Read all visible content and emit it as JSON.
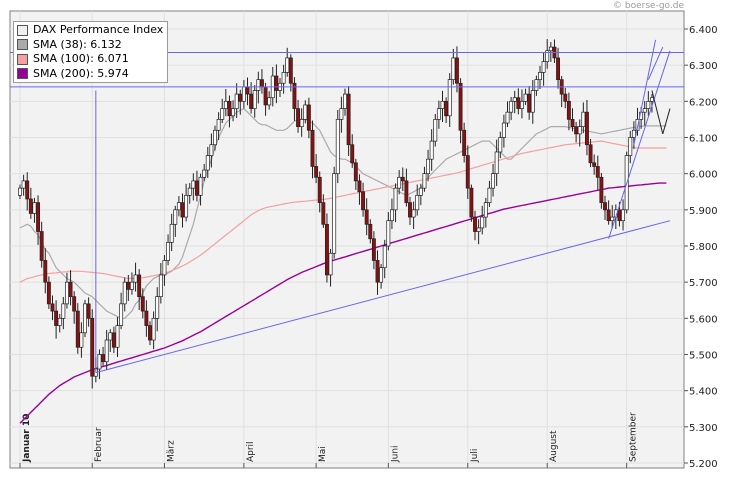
{
  "watermark": "© boerse-go.de",
  "legend": {
    "items": [
      {
        "label": "DAX Performance Index",
        "color": "#f0f0f0"
      },
      {
        "label": "SMA (38): 6.132",
        "color": "#aaaaaa"
      },
      {
        "label": "SMA (100): 6.071",
        "color": "#f4a0a0"
      },
      {
        "label": "SMA (200): 5.974",
        "color": "#990099"
      }
    ]
  },
  "colors": {
    "background": "#f2f2f2",
    "grid": "#e0e0e0",
    "candle_up": "#ffffff",
    "candle_down": "#8b1010",
    "sma38": "#aaaaaa",
    "sma100": "#f4a0a0",
    "sma200": "#990099",
    "trendline": "#6666ee"
  },
  "chart_data": {
    "type": "candlestick",
    "title": "",
    "ylim": [
      5200,
      6420
    ],
    "y_ticks": [
      "6.400",
      "6.300",
      "6.200",
      "6.100",
      "6.000",
      "5.900",
      "5.800",
      "5.700",
      "5.600",
      "5.500",
      "5.400",
      "5.300",
      "5.200"
    ],
    "y_tick_values": [
      6400,
      6300,
      6200,
      6100,
      6000,
      5900,
      5800,
      5700,
      5600,
      5500,
      5400,
      5300,
      5200
    ],
    "month_labels": [
      {
        "label": "Januar 10",
        "day": 0,
        "bold": true
      },
      {
        "label": "Februar",
        "day": 20
      },
      {
        "label": "März",
        "day": 40
      },
      {
        "label": "April",
        "day": 62
      },
      {
        "label": "Mai",
        "day": 82
      },
      {
        "label": "Juni",
        "day": 102
      },
      {
        "label": "Juli",
        "day": 124
      },
      {
        "label": "August",
        "day": 146
      },
      {
        "label": "September",
        "day": 168
      }
    ],
    "total_days": 180,
    "closes": [
      5960,
      5980,
      5930,
      5890,
      5920,
      5840,
      5760,
      5700,
      5640,
      5620,
      5580,
      5600,
      5640,
      5700,
      5660,
      5620,
      5520,
      5560,
      5640,
      5600,
      5440,
      5460,
      5500,
      5480,
      5540,
      5560,
      5520,
      5580,
      5640,
      5700,
      5680,
      5700,
      5720,
      5660,
      5620,
      5580,
      5540,
      5600,
      5660,
      5720,
      5760,
      5810,
      5860,
      5900,
      5920,
      5880,
      5940,
      5960,
      5980,
      5940,
      5990,
      6010,
      6050,
      6080,
      6120,
      6150,
      6180,
      6200,
      6160,
      6180,
      6220,
      6200,
      6240,
      6220,
      6180,
      6230,
      6260,
      6240,
      6190,
      6210,
      6270,
      6230,
      6250,
      6280,
      6320,
      6250,
      6180,
      6130,
      6150,
      6190,
      6120,
      6020,
      5990,
      5920,
      5860,
      5720,
      5780,
      6000,
      6150,
      6180,
      6220,
      6080,
      6030,
      5980,
      5950,
      5900,
      5860,
      5820,
      5760,
      5700,
      5740,
      5800,
      5870,
      5900,
      5960,
      5990,
      5980,
      5920,
      5880,
      5900,
      5940,
      5960,
      6000,
      6040,
      6090,
      6150,
      6180,
      6200,
      6160,
      6260,
      6320,
      6250,
      6120,
      6050,
      5960,
      5880,
      5840,
      5850,
      5880,
      5920,
      5960,
      6000,
      6060,
      6100,
      6140,
      6170,
      6200,
      6210,
      6180,
      6200,
      6220,
      6170,
      6230,
      6260,
      6280,
      6310,
      6340,
      6350,
      6320,
      6260,
      6220,
      6200,
      6150,
      6130,
      6110,
      6130,
      6170,
      6080,
      6030,
      6020,
      5990,
      5920,
      5900,
      5870,
      5880,
      5900,
      5870,
      5900,
      6050,
      6100,
      6120,
      6150,
      6170,
      6180,
      6200,
      6210
    ],
    "sma38": [
      5850,
      5855,
      5860,
      5855,
      5840,
      5830,
      5810,
      5790,
      5780,
      5760,
      5740,
      5730,
      5720,
      5710,
      5705,
      5700,
      5690,
      5680,
      5670,
      5665,
      5660,
      5650,
      5640,
      5630,
      5620,
      5615,
      5610,
      5605,
      5600,
      5600,
      5610,
      5620,
      5640,
      5650,
      5670,
      5690,
      5700,
      5710,
      5715,
      5720,
      5720,
      5725,
      5730,
      5740,
      5750,
      5770,
      5800,
      5830,
      5860,
      5900,
      5940,
      5980,
      6010,
      6040,
      6070,
      6100,
      6120,
      6140,
      6150,
      6160,
      6170,
      6175,
      6180,
      6170,
      6160,
      6150,
      6140,
      6135,
      6135,
      6130,
      6125,
      6120,
      6120,
      6120,
      6125,
      6135,
      6145,
      6150,
      6150,
      6150,
      6145,
      6140,
      6130,
      6120,
      6100,
      6080,
      6060,
      6050,
      6045,
      6040,
      6040,
      6035,
      6030,
      6020,
      6010,
      6000,
      5995,
      5990,
      5985,
      5980,
      5975,
      5970,
      5965,
      5960,
      5955,
      5950,
      5945,
      5940,
      5945,
      5950,
      5955,
      5960,
      5975,
      5990,
      6000,
      6010,
      6020,
      6030,
      6040,
      6045,
      6050,
      6055,
      6060,
      6065,
      6070,
      6075,
      6080,
      6085,
      6090,
      6090,
      6090,
      6080,
      6070,
      6060,
      6050,
      6040,
      6040,
      6050,
      6060,
      6070,
      6080,
      6090,
      6100,
      6110,
      6115,
      6120,
      6125,
      6130,
      6130,
      6130,
      6130,
      6130,
      6128,
      6126,
      6124,
      6122,
      6120,
      6118,
      6116,
      6114,
      6112,
      6110,
      6112,
      6114,
      6116,
      6118,
      6120,
      6122,
      6124,
      6126,
      6128,
      6130,
      6131,
      6132,
      6132,
      6132,
      6132,
      6132,
      6132,
      6132
    ],
    "sma100": [
      5700,
      5705,
      5710,
      5712,
      5715,
      5718,
      5720,
      5722,
      5724,
      5725,
      5726,
      5727,
      5728,
      5729,
      5730,
      5730,
      5730,
      5730,
      5729,
      5728,
      5727,
      5726,
      5725,
      5724,
      5722,
      5720,
      5718,
      5716,
      5714,
      5712,
      5710,
      5710,
      5710,
      5711,
      5712,
      5714,
      5716,
      5718,
      5720,
      5722,
      5725,
      5728,
      5732,
      5736,
      5740,
      5745,
      5750,
      5756,
      5762,
      5768,
      5775,
      5782,
      5790,
      5798,
      5806,
      5814,
      5822,
      5830,
      5838,
      5846,
      5854,
      5862,
      5870,
      5878,
      5886,
      5892,
      5898,
      5902,
      5906,
      5908,
      5910,
      5912,
      5914,
      5916,
      5918,
      5920,
      5921,
      5922,
      5923,
      5924,
      5925,
      5926,
      5927,
      5928,
      5929,
      5930,
      5932,
      5934,
      5936,
      5938,
      5940,
      5942,
      5944,
      5946,
      5948,
      5950,
      5952,
      5954,
      5956,
      5958,
      5960,
      5962,
      5964,
      5966,
      5968,
      5970,
      5972,
      5974,
      5976,
      5978,
      5980,
      5982,
      5984,
      5986,
      5988,
      5990,
      5992,
      5994,
      5996,
      5998,
      6000,
      6002,
      6005,
      6008,
      6011,
      6014,
      6017,
      6020,
      6023,
      6026,
      6029,
      6032,
      6035,
      6038,
      6041,
      6044,
      6047,
      6050,
      6053,
      6056,
      6058,
      6060,
      6062,
      6064,
      6066,
      6068,
      6070,
      6072,
      6074,
      6076,
      6078,
      6080,
      6081,
      6082,
      6083,
      6084,
      6085,
      6086,
      6087,
      6088,
      6089,
      6090,
      6088,
      6086,
      6084,
      6082,
      6080,
      6078,
      6076,
      6074,
      6072,
      6071,
      6071,
      6071,
      6071,
      6071,
      6071,
      6071,
      6071,
      6071
    ],
    "sma200": [
      5310,
      5320,
      5330,
      5340,
      5350,
      5360,
      5370,
      5380,
      5390,
      5398,
      5406,
      5414,
      5420,
      5426,
      5432,
      5438,
      5442,
      5446,
      5450,
      5454,
      5458,
      5461,
      5464,
      5467,
      5470,
      5473,
      5476,
      5479,
      5482,
      5485,
      5488,
      5491,
      5494,
      5497,
      5500,
      5503,
      5506,
      5509,
      5512,
      5515,
      5518,
      5522,
      5526,
      5530,
      5534,
      5538,
      5543,
      5548,
      5553,
      5558,
      5563,
      5569,
      5575,
      5581,
      5587,
      5593,
      5599,
      5605,
      5611,
      5617,
      5623,
      5629,
      5635,
      5641,
      5647,
      5653,
      5659,
      5665,
      5671,
      5677,
      5683,
      5689,
      5695,
      5701,
      5707,
      5712,
      5717,
      5722,
      5727,
      5731,
      5735,
      5739,
      5743,
      5747,
      5751,
      5755,
      5758,
      5761,
      5764,
      5767,
      5770,
      5773,
      5776,
      5779,
      5782,
      5785,
      5788,
      5791,
      5794,
      5797,
      5800,
      5803,
      5806,
      5809,
      5812,
      5815,
      5818,
      5821,
      5824,
      5827,
      5830,
      5833,
      5836,
      5839,
      5842,
      5845,
      5848,
      5851,
      5854,
      5857,
      5860,
      5863,
      5866,
      5869,
      5872,
      5875,
      5878,
      5881,
      5884,
      5887,
      5890,
      5893,
      5896,
      5899,
      5902,
      5904,
      5906,
      5908,
      5910,
      5912,
      5914,
      5916,
      5918,
      5920,
      5922,
      5924,
      5926,
      5928,
      5930,
      5932,
      5934,
      5936,
      5938,
      5940,
      5942,
      5944,
      5946,
      5948,
      5950,
      5952,
      5954,
      5956,
      5958,
      5960,
      5961,
      5962,
      5963,
      5964,
      5965,
      5966,
      5967,
      5968,
      5969,
      5970,
      5971,
      5972,
      5973,
      5974,
      5974,
      5974
    ],
    "horizontal_lines": [
      6335,
      6240
    ],
    "trendlines": [
      {
        "from": [
          21,
          5450
        ],
        "to": [
          180,
          5870
        ]
      },
      {
        "from": [
          21,
          5450
        ],
        "to": [
          21,
          6230
        ]
      },
      {
        "from": [
          163,
          5820
        ],
        "to": [
          180,
          6340
        ]
      },
      {
        "from": [
          170,
          6080
        ],
        "to": [
          176,
          6370
        ]
      },
      {
        "from": [
          174,
          6260
        ],
        "to": [
          178,
          6350
        ]
      },
      {
        "from": [
          175,
          6230
        ],
        "to": [
          178,
          6110
        ]
      },
      {
        "from": [
          178,
          6110
        ],
        "to": [
          180,
          6180
        ]
      }
    ]
  }
}
